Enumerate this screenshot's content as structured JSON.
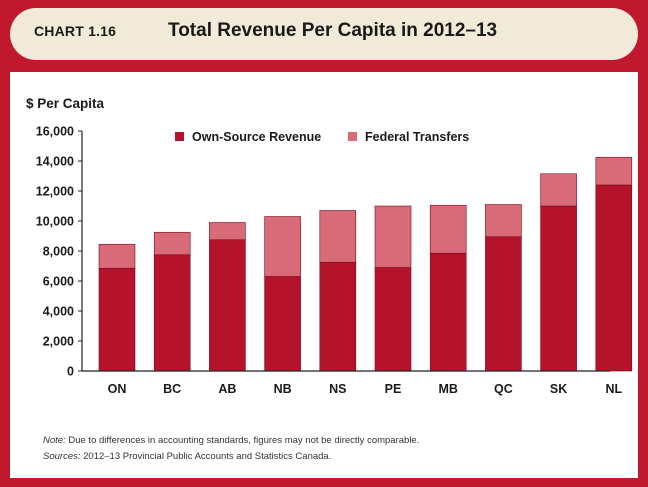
{
  "header": {
    "chart_number": "CHART 1.16",
    "title": "Total Revenue Per Capita in 2012–13"
  },
  "colors": {
    "frame": "#c0182c",
    "header_bg": "#f2ead9",
    "own_source": "#b5132c",
    "federal": "#d96b79"
  },
  "footnotes": {
    "note_label": "Note:",
    "note_text": " Due to differences in accounting standards, figures may not be directly comparable.",
    "sources_label": "Sources:",
    "sources_text": " 2012–13 Provincial Public Accounts and Statistics  Canada."
  },
  "chart_data": {
    "type": "bar",
    "stacked": true,
    "title": "Total Revenue Per Capita in 2012–13",
    "ylabel": "$ Per Capita",
    "xlabel": "",
    "ylim": [
      0,
      16000
    ],
    "yticks": [
      0,
      2000,
      4000,
      6000,
      8000,
      10000,
      12000,
      14000,
      16000
    ],
    "ytick_labels": [
      "0",
      "2,000",
      "4,000",
      "6,000",
      "8,000",
      "10,000",
      "12,000",
      "14,000",
      "16,000"
    ],
    "categories": [
      "ON",
      "BC",
      "AB",
      "NB",
      "NS",
      "PE",
      "MB",
      "QC",
      "SK",
      "NL"
    ],
    "grid": false,
    "legend_position": "top",
    "series": [
      {
        "name": "Own-Source Revenue",
        "color": "#b5132c",
        "values": [
          6850,
          7750,
          8750,
          6300,
          7250,
          6900,
          7850,
          8950,
          11000,
          12400
        ]
      },
      {
        "name": "Federal Transfers",
        "color": "#d96b79",
        "values": [
          1600,
          1500,
          1150,
          4000,
          3450,
          4100,
          3200,
          2150,
          2150,
          1850
        ]
      }
    ]
  }
}
